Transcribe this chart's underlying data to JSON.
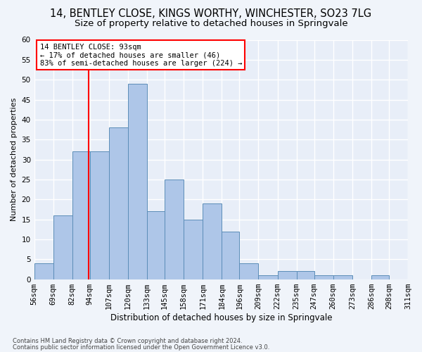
{
  "title1": "14, BENTLEY CLOSE, KINGS WORTHY, WINCHESTER, SO23 7LG",
  "title2": "Size of property relative to detached houses in Springvale",
  "xlabel": "Distribution of detached houses by size in Springvale",
  "ylabel": "Number of detached properties",
  "footer1": "Contains HM Land Registry data © Crown copyright and database right 2024.",
  "footer2": "Contains public sector information licensed under the Open Government Licence v3.0.",
  "annotation_title": "14 BENTLEY CLOSE: 93sqm",
  "annotation_line1": "← 17% of detached houses are smaller (46)",
  "annotation_line2": "83% of semi-detached houses are larger (224) →",
  "property_size": 93,
  "bin_edges": [
    56,
    69,
    82,
    94,
    107,
    120,
    133,
    145,
    158,
    171,
    184,
    196,
    209,
    222,
    235,
    247,
    260,
    273,
    286,
    298,
    311
  ],
  "bin_labels": [
    "56sqm",
    "69sqm",
    "82sqm",
    "94sqm",
    "107sqm",
    "120sqm",
    "133sqm",
    "145sqm",
    "158sqm",
    "171sqm",
    "184sqm",
    "196sqm",
    "209sqm",
    "222sqm",
    "235sqm",
    "247sqm",
    "260sqm",
    "273sqm",
    "286sqm",
    "298sqm",
    "311sqm"
  ],
  "bar_heights": [
    4,
    16,
    32,
    32,
    38,
    49,
    17,
    25,
    15,
    19,
    12,
    4,
    1,
    2,
    2,
    1,
    1,
    0,
    1,
    0
  ],
  "bar_color": "#aec6e8",
  "bar_edge_color": "#5b8db8",
  "vline_color": "red",
  "ylim": [
    0,
    60
  ],
  "yticks": [
    0,
    5,
    10,
    15,
    20,
    25,
    30,
    35,
    40,
    45,
    50,
    55,
    60
  ],
  "background_color": "#f0f4fa",
  "plot_background": "#e8eef8",
  "grid_color": "#ffffff",
  "annotation_box_color": "#ffffff",
  "annotation_box_edge": "red",
  "title1_fontsize": 10.5,
  "title2_fontsize": 9.5,
  "xlabel_fontsize": 8.5,
  "ylabel_fontsize": 8,
  "tick_fontsize": 7.5,
  "annotation_fontsize": 7.5,
  "footer_fontsize": 6
}
